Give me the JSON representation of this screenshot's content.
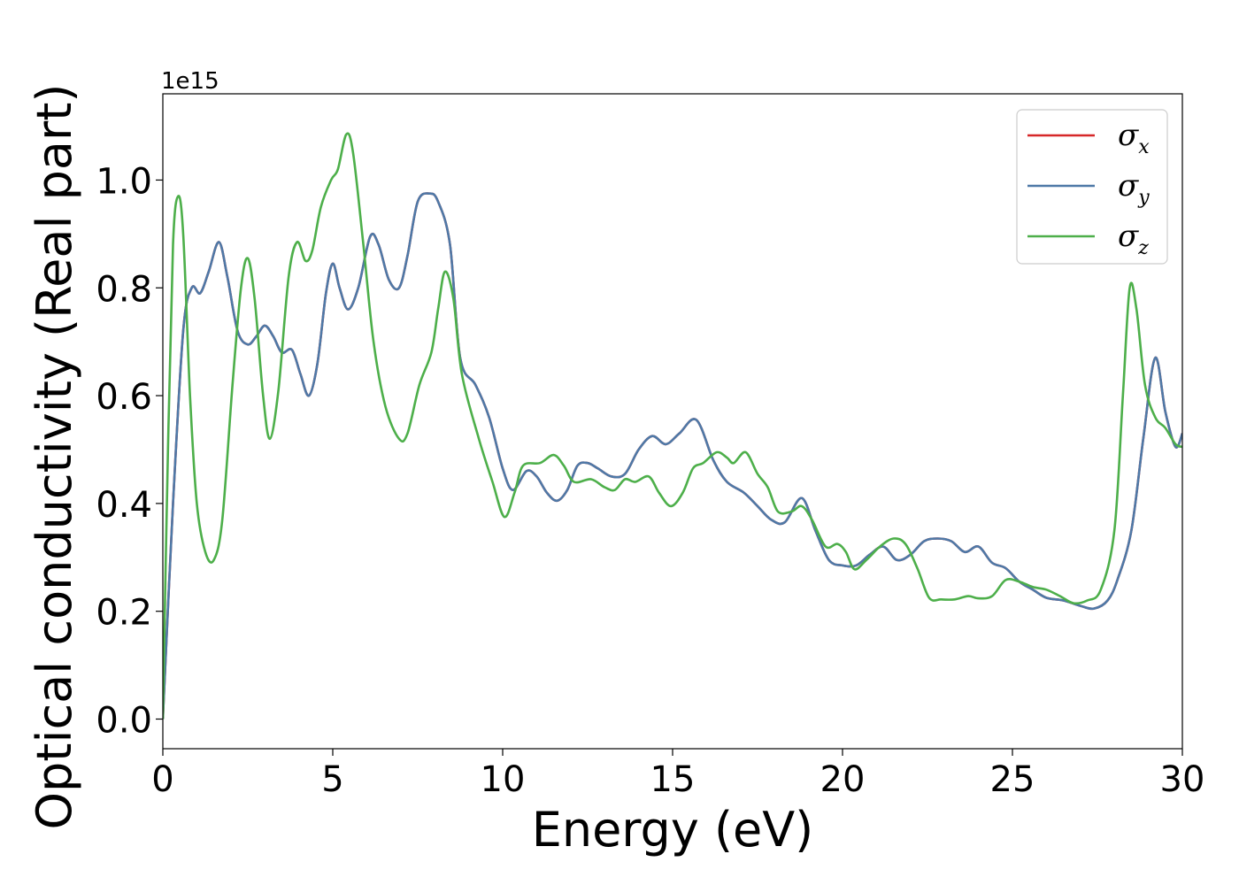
{
  "chart_data": {
    "type": "line",
    "xlabel": "Energy (eV)",
    "ylabel": "Optical conductivity (Real part)",
    "y_offset_label": "1e15",
    "xlim": [
      0,
      30
    ],
    "ylim": [
      -0.055,
      1.16
    ],
    "x_ticks": [
      0,
      5,
      10,
      15,
      20,
      25,
      30
    ],
    "y_ticks": [
      0.0,
      0.2,
      0.4,
      0.6,
      0.8,
      1.0
    ],
    "y_tick_labels": [
      "0.0",
      "0.2",
      "0.4",
      "0.6",
      "0.8",
      "1.0"
    ],
    "x_tick_labels": [
      "0",
      "5",
      "10",
      "15",
      "20",
      "25",
      "30"
    ],
    "grid": false,
    "legend_position": "top-right",
    "series": [
      {
        "name": "σx",
        "symbol": "σ",
        "subscript": "x",
        "color": "#d62728",
        "points": [
          [
            0,
            0
          ],
          [
            0.3,
            0.4
          ],
          [
            0.6,
            0.72
          ],
          [
            0.85,
            0.8
          ],
          [
            1.1,
            0.79
          ],
          [
            1.35,
            0.83
          ],
          [
            1.65,
            0.885
          ],
          [
            1.9,
            0.82
          ],
          [
            2.2,
            0.72
          ],
          [
            2.5,
            0.695
          ],
          [
            2.75,
            0.71
          ],
          [
            3.0,
            0.73
          ],
          [
            3.25,
            0.71
          ],
          [
            3.5,
            0.68
          ],
          [
            3.8,
            0.685
          ],
          [
            4.05,
            0.64
          ],
          [
            4.3,
            0.6
          ],
          [
            4.55,
            0.66
          ],
          [
            4.8,
            0.79
          ],
          [
            5.0,
            0.845
          ],
          [
            5.2,
            0.8
          ],
          [
            5.45,
            0.76
          ],
          [
            5.75,
            0.8
          ],
          [
            6.1,
            0.895
          ],
          [
            6.35,
            0.88
          ],
          [
            6.65,
            0.815
          ],
          [
            6.95,
            0.8
          ],
          [
            7.2,
            0.86
          ],
          [
            7.5,
            0.96
          ],
          [
            7.85,
            0.975
          ],
          [
            8.1,
            0.96
          ],
          [
            8.45,
            0.88
          ],
          [
            8.75,
            0.67
          ],
          [
            9.2,
            0.62
          ],
          [
            9.6,
            0.56
          ],
          [
            10.0,
            0.465
          ],
          [
            10.3,
            0.425
          ],
          [
            10.7,
            0.46
          ],
          [
            11.0,
            0.45
          ],
          [
            11.3,
            0.42
          ],
          [
            11.6,
            0.405
          ],
          [
            11.9,
            0.425
          ],
          [
            12.2,
            0.47
          ],
          [
            12.5,
            0.475
          ],
          [
            12.8,
            0.465
          ],
          [
            13.2,
            0.45
          ],
          [
            13.6,
            0.455
          ],
          [
            14.0,
            0.5
          ],
          [
            14.4,
            0.525
          ],
          [
            14.8,
            0.51
          ],
          [
            15.2,
            0.53
          ],
          [
            15.7,
            0.555
          ],
          [
            16.2,
            0.48
          ],
          [
            16.6,
            0.44
          ],
          [
            17.1,
            0.42
          ],
          [
            17.5,
            0.395
          ],
          [
            17.9,
            0.37
          ],
          [
            18.3,
            0.365
          ],
          [
            18.8,
            0.41
          ],
          [
            19.2,
            0.35
          ],
          [
            19.6,
            0.295
          ],
          [
            20.0,
            0.285
          ],
          [
            20.4,
            0.285
          ],
          [
            20.8,
            0.305
          ],
          [
            21.2,
            0.32
          ],
          [
            21.6,
            0.295
          ],
          [
            22.0,
            0.305
          ],
          [
            22.4,
            0.33
          ],
          [
            22.8,
            0.335
          ],
          [
            23.2,
            0.33
          ],
          [
            23.6,
            0.31
          ],
          [
            24.0,
            0.32
          ],
          [
            24.4,
            0.29
          ],
          [
            24.8,
            0.28
          ],
          [
            25.2,
            0.255
          ],
          [
            25.6,
            0.24
          ],
          [
            26.0,
            0.225
          ],
          [
            26.5,
            0.22
          ],
          [
            27.0,
            0.21
          ],
          [
            27.4,
            0.205
          ],
          [
            27.8,
            0.22
          ],
          [
            28.1,
            0.26
          ],
          [
            28.5,
            0.35
          ],
          [
            28.85,
            0.52
          ],
          [
            29.2,
            0.67
          ],
          [
            29.5,
            0.57
          ],
          [
            29.8,
            0.505
          ],
          [
            30.0,
            0.53
          ]
        ]
      },
      {
        "name": "σy",
        "symbol": "σ",
        "subscript": "y",
        "color": "#4e79a7",
        "points": [
          [
            0,
            0
          ],
          [
            0.3,
            0.4
          ],
          [
            0.6,
            0.72
          ],
          [
            0.85,
            0.8
          ],
          [
            1.1,
            0.79
          ],
          [
            1.35,
            0.83
          ],
          [
            1.65,
            0.885
          ],
          [
            1.9,
            0.82
          ],
          [
            2.2,
            0.72
          ],
          [
            2.5,
            0.695
          ],
          [
            2.75,
            0.71
          ],
          [
            3.0,
            0.73
          ],
          [
            3.25,
            0.71
          ],
          [
            3.5,
            0.68
          ],
          [
            3.8,
            0.685
          ],
          [
            4.05,
            0.64
          ],
          [
            4.3,
            0.6
          ],
          [
            4.55,
            0.66
          ],
          [
            4.8,
            0.79
          ],
          [
            5.0,
            0.845
          ],
          [
            5.2,
            0.8
          ],
          [
            5.45,
            0.76
          ],
          [
            5.75,
            0.8
          ],
          [
            6.1,
            0.895
          ],
          [
            6.35,
            0.88
          ],
          [
            6.65,
            0.815
          ],
          [
            6.95,
            0.8
          ],
          [
            7.2,
            0.86
          ],
          [
            7.5,
            0.96
          ],
          [
            7.85,
            0.975
          ],
          [
            8.1,
            0.96
          ],
          [
            8.45,
            0.88
          ],
          [
            8.75,
            0.67
          ],
          [
            9.2,
            0.62
          ],
          [
            9.6,
            0.56
          ],
          [
            10.0,
            0.465
          ],
          [
            10.3,
            0.425
          ],
          [
            10.7,
            0.46
          ],
          [
            11.0,
            0.45
          ],
          [
            11.3,
            0.42
          ],
          [
            11.6,
            0.405
          ],
          [
            11.9,
            0.425
          ],
          [
            12.2,
            0.47
          ],
          [
            12.5,
            0.475
          ],
          [
            12.8,
            0.465
          ],
          [
            13.2,
            0.45
          ],
          [
            13.6,
            0.455
          ],
          [
            14.0,
            0.5
          ],
          [
            14.4,
            0.525
          ],
          [
            14.8,
            0.51
          ],
          [
            15.2,
            0.53
          ],
          [
            15.7,
            0.555
          ],
          [
            16.2,
            0.48
          ],
          [
            16.6,
            0.44
          ],
          [
            17.1,
            0.42
          ],
          [
            17.5,
            0.395
          ],
          [
            17.9,
            0.37
          ],
          [
            18.3,
            0.365
          ],
          [
            18.8,
            0.41
          ],
          [
            19.2,
            0.35
          ],
          [
            19.6,
            0.295
          ],
          [
            20.0,
            0.285
          ],
          [
            20.4,
            0.285
          ],
          [
            20.8,
            0.305
          ],
          [
            21.2,
            0.32
          ],
          [
            21.6,
            0.295
          ],
          [
            22.0,
            0.305
          ],
          [
            22.4,
            0.33
          ],
          [
            22.8,
            0.335
          ],
          [
            23.2,
            0.33
          ],
          [
            23.6,
            0.31
          ],
          [
            24.0,
            0.32
          ],
          [
            24.4,
            0.29
          ],
          [
            24.8,
            0.28
          ],
          [
            25.2,
            0.255
          ],
          [
            25.6,
            0.24
          ],
          [
            26.0,
            0.225
          ],
          [
            26.5,
            0.22
          ],
          [
            27.0,
            0.21
          ],
          [
            27.4,
            0.205
          ],
          [
            27.8,
            0.22
          ],
          [
            28.1,
            0.26
          ],
          [
            28.5,
            0.35
          ],
          [
            28.85,
            0.52
          ],
          [
            29.2,
            0.67
          ],
          [
            29.5,
            0.57
          ],
          [
            29.8,
            0.505
          ],
          [
            30.0,
            0.53
          ]
        ]
      },
      {
        "name": "σz",
        "symbol": "σ",
        "subscript": "z",
        "color": "#4daf4a",
        "points": [
          [
            0,
            0
          ],
          [
            0.15,
            0.5
          ],
          [
            0.3,
            0.88
          ],
          [
            0.45,
            0.97
          ],
          [
            0.6,
            0.9
          ],
          [
            0.8,
            0.6
          ],
          [
            1.0,
            0.4
          ],
          [
            1.25,
            0.31
          ],
          [
            1.5,
            0.295
          ],
          [
            1.75,
            0.37
          ],
          [
            2.05,
            0.62
          ],
          [
            2.3,
            0.8
          ],
          [
            2.5,
            0.855
          ],
          [
            2.7,
            0.78
          ],
          [
            2.95,
            0.6
          ],
          [
            3.15,
            0.52
          ],
          [
            3.4,
            0.61
          ],
          [
            3.7,
            0.82
          ],
          [
            3.95,
            0.885
          ],
          [
            4.2,
            0.85
          ],
          [
            4.4,
            0.87
          ],
          [
            4.65,
            0.95
          ],
          [
            4.95,
            1.0
          ],
          [
            5.15,
            1.02
          ],
          [
            5.4,
            1.085
          ],
          [
            5.6,
            1.05
          ],
          [
            5.9,
            0.88
          ],
          [
            6.2,
            0.7
          ],
          [
            6.55,
            0.58
          ],
          [
            6.95,
            0.52
          ],
          [
            7.2,
            0.53
          ],
          [
            7.55,
            0.62
          ],
          [
            7.9,
            0.68
          ],
          [
            8.1,
            0.76
          ],
          [
            8.3,
            0.83
          ],
          [
            8.55,
            0.78
          ],
          [
            8.8,
            0.64
          ],
          [
            9.3,
            0.52
          ],
          [
            9.7,
            0.44
          ],
          [
            10.05,
            0.375
          ],
          [
            10.35,
            0.42
          ],
          [
            10.6,
            0.47
          ],
          [
            11.1,
            0.475
          ],
          [
            11.5,
            0.49
          ],
          [
            11.8,
            0.47
          ],
          [
            12.1,
            0.44
          ],
          [
            12.6,
            0.445
          ],
          [
            13.0,
            0.43
          ],
          [
            13.3,
            0.425
          ],
          [
            13.6,
            0.445
          ],
          [
            13.9,
            0.44
          ],
          [
            14.3,
            0.45
          ],
          [
            14.6,
            0.42
          ],
          [
            14.95,
            0.395
          ],
          [
            15.3,
            0.42
          ],
          [
            15.6,
            0.465
          ],
          [
            15.9,
            0.475
          ],
          [
            16.3,
            0.495
          ],
          [
            16.6,
            0.485
          ],
          [
            16.8,
            0.475
          ],
          [
            17.15,
            0.495
          ],
          [
            17.5,
            0.455
          ],
          [
            17.8,
            0.43
          ],
          [
            18.1,
            0.385
          ],
          [
            18.5,
            0.385
          ],
          [
            18.8,
            0.395
          ],
          [
            19.1,
            0.37
          ],
          [
            19.5,
            0.32
          ],
          [
            19.85,
            0.325
          ],
          [
            20.1,
            0.31
          ],
          [
            20.35,
            0.278
          ],
          [
            20.7,
            0.295
          ],
          [
            21.1,
            0.32
          ],
          [
            21.5,
            0.335
          ],
          [
            21.85,
            0.325
          ],
          [
            22.2,
            0.28
          ],
          [
            22.55,
            0.225
          ],
          [
            22.9,
            0.222
          ],
          [
            23.3,
            0.222
          ],
          [
            23.7,
            0.228
          ],
          [
            24.0,
            0.224
          ],
          [
            24.4,
            0.228
          ],
          [
            24.8,
            0.258
          ],
          [
            25.2,
            0.255
          ],
          [
            25.6,
            0.245
          ],
          [
            26.0,
            0.24
          ],
          [
            26.4,
            0.228
          ],
          [
            26.8,
            0.215
          ],
          [
            27.2,
            0.22
          ],
          [
            27.6,
            0.24
          ],
          [
            28.0,
            0.35
          ],
          [
            28.25,
            0.6
          ],
          [
            28.45,
            0.8
          ],
          [
            28.65,
            0.76
          ],
          [
            28.9,
            0.62
          ],
          [
            29.2,
            0.56
          ],
          [
            29.5,
            0.54
          ],
          [
            29.8,
            0.51
          ],
          [
            30.0,
            0.505
          ]
        ]
      }
    ]
  }
}
